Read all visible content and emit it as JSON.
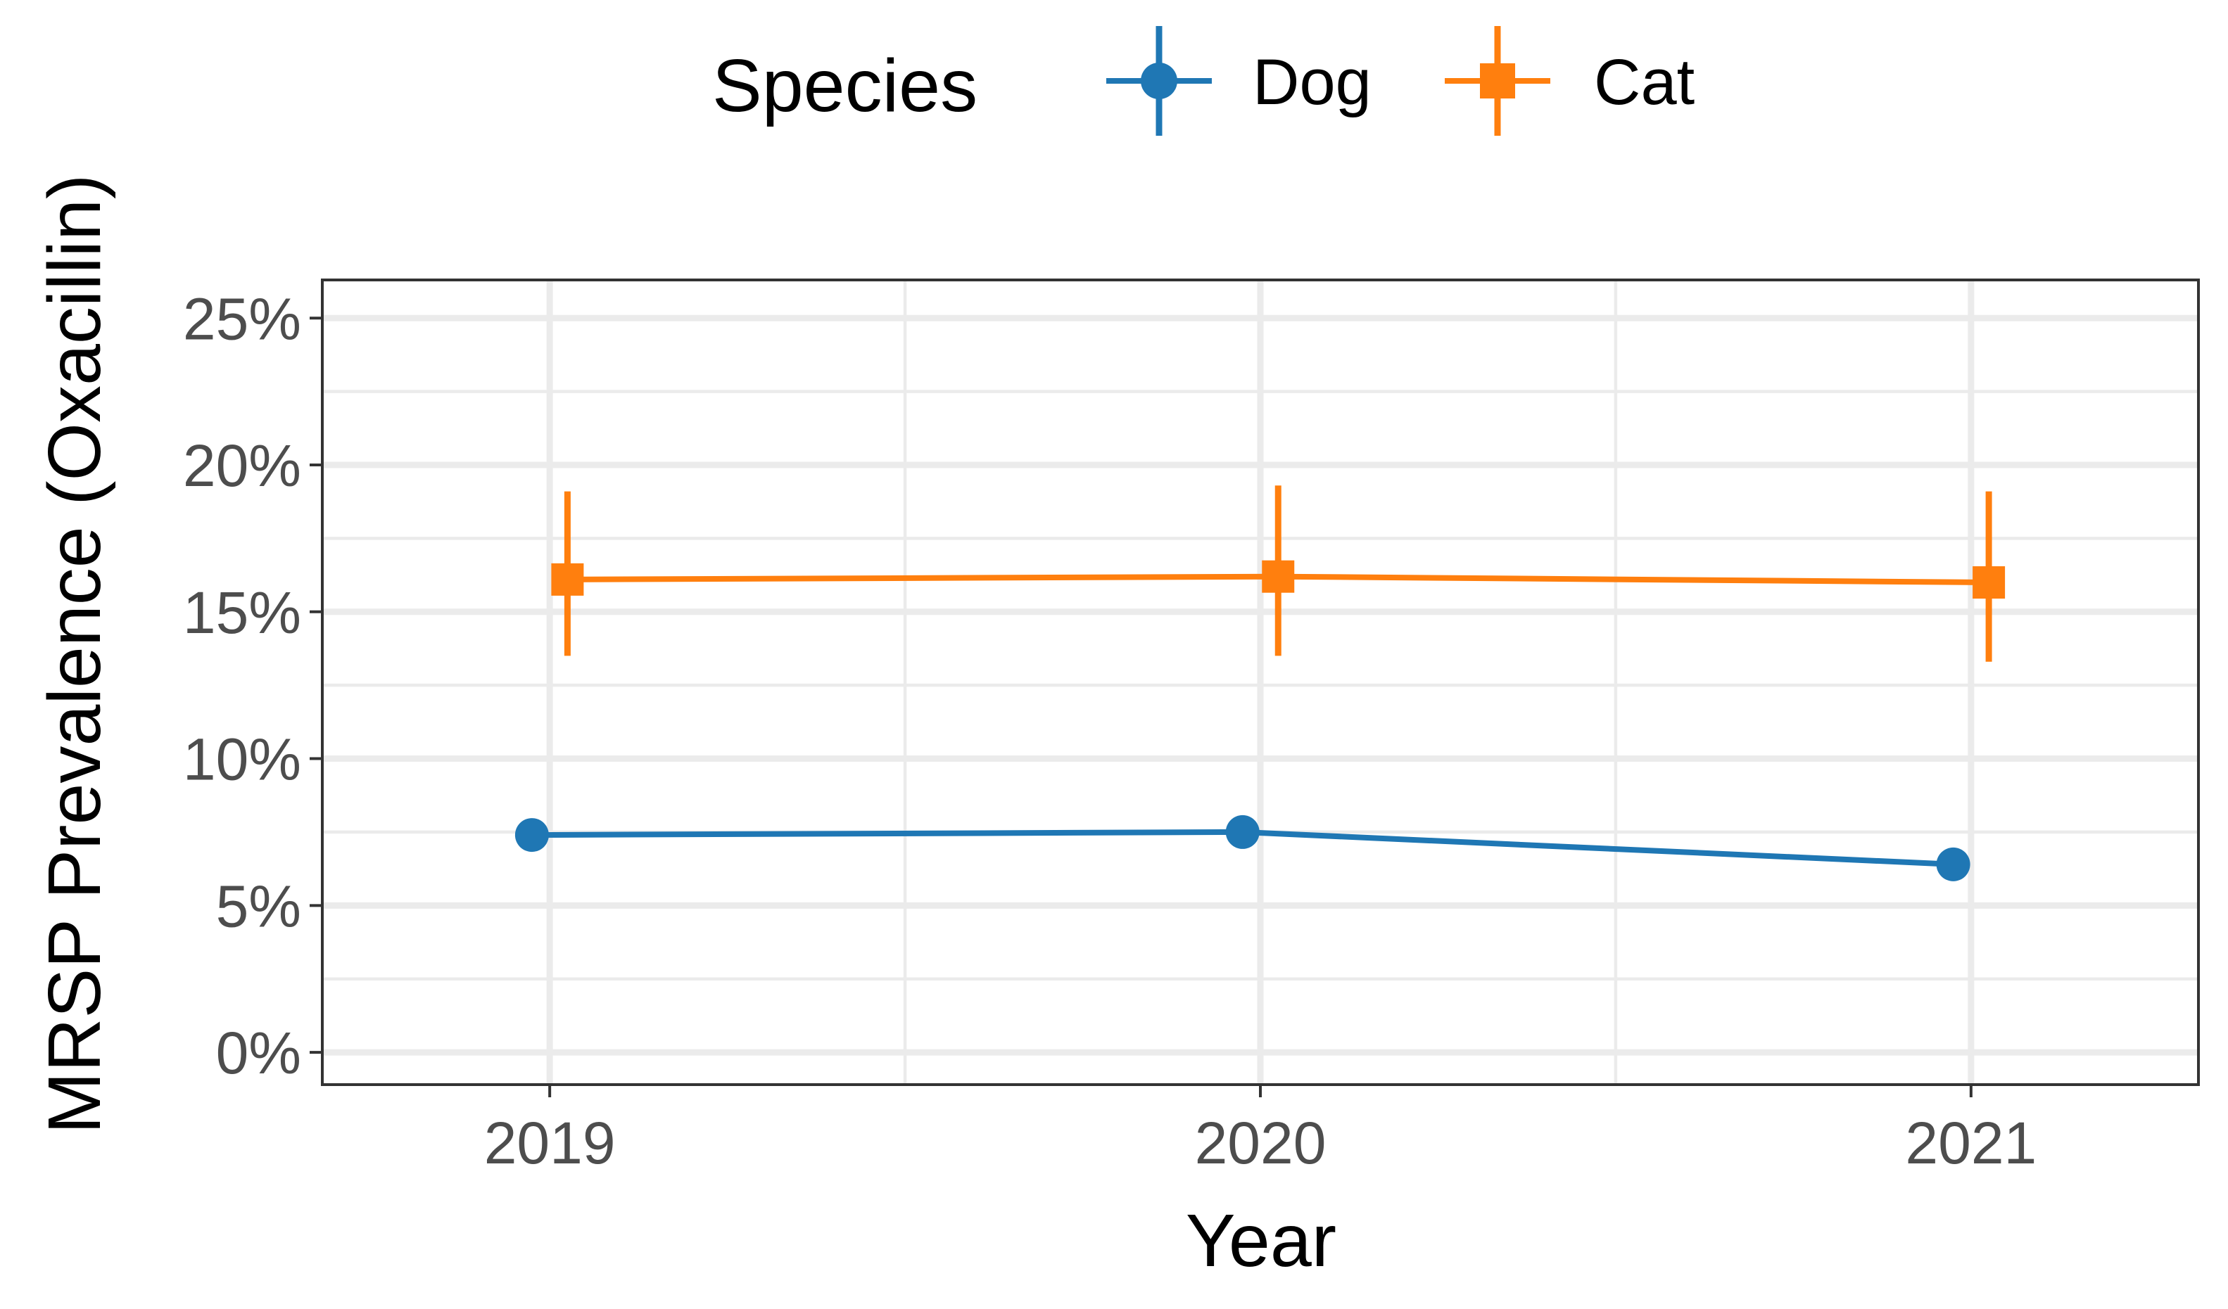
{
  "chart_data": {
    "type": "line",
    "title": "",
    "xlabel": "Year",
    "ylabel": "MRSP Prevalence (Oxacillin)",
    "categories": [
      "2019",
      "2020",
      "2021"
    ],
    "x": [
      2019,
      2020,
      2021
    ],
    "xlim": [
      2018.68,
      2021.32
    ],
    "ylim": [
      -1.1,
      26.3
    ],
    "yticks": [
      0,
      5,
      10,
      15,
      20,
      25
    ],
    "ytick_labels": [
      "0%",
      "5%",
      "10%",
      "15%",
      "20%",
      "25%"
    ],
    "grid": true,
    "legend": {
      "title": "Species",
      "position": "top",
      "labels": [
        "Dog",
        "Cat"
      ]
    },
    "series": [
      {
        "name": "Dog",
        "color": "#1f77b4",
        "marker": "circle",
        "dodge": -0.025,
        "values": [
          7.4,
          7.5,
          6.4
        ],
        "error_low": [
          null,
          null,
          null
        ],
        "error_high": [
          null,
          null,
          null
        ]
      },
      {
        "name": "Cat",
        "color": "#ff7f0e",
        "marker": "square",
        "dodge": 0.025,
        "values": [
          16.1,
          16.2,
          16.0
        ],
        "error_low": [
          13.5,
          13.5,
          13.3
        ],
        "error_high": [
          19.1,
          19.3,
          19.1
        ]
      }
    ]
  }
}
